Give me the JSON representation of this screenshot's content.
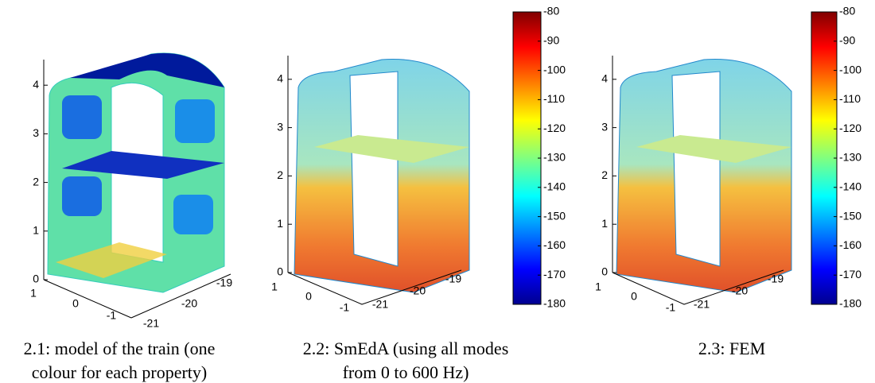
{
  "panels": [
    {
      "caption": "2.1: model of the train (one colour for each property)",
      "z_ticks": [
        0,
        1,
        2,
        3,
        4
      ],
      "x_ticks": [
        1,
        0,
        -1
      ],
      "y_ticks": [
        -21,
        -20,
        -19
      ]
    },
    {
      "caption": "2.2: SmEdA (using all modes from 0 to 600 Hz)",
      "z_ticks": [
        0,
        1,
        2,
        3,
        4
      ],
      "x_ticks": [
        1,
        0,
        -1
      ],
      "y_ticks": [
        -21,
        -20,
        -19
      ],
      "colorbar_ticks": [
        -80,
        -90,
        -100,
        -110,
        -120,
        -130,
        -140,
        -150,
        -160,
        -170,
        -180
      ]
    },
    {
      "caption": "2.3: FEM",
      "z_ticks": [
        0,
        1,
        2,
        3,
        4
      ],
      "x_ticks": [
        1,
        0,
        -1
      ],
      "y_ticks": [
        -21,
        -20,
        -19
      ],
      "colorbar_ticks": [
        -80,
        -90,
        -100,
        -110,
        -120,
        -130,
        -140,
        -150,
        -160,
        -170,
        -180
      ]
    }
  ]
}
